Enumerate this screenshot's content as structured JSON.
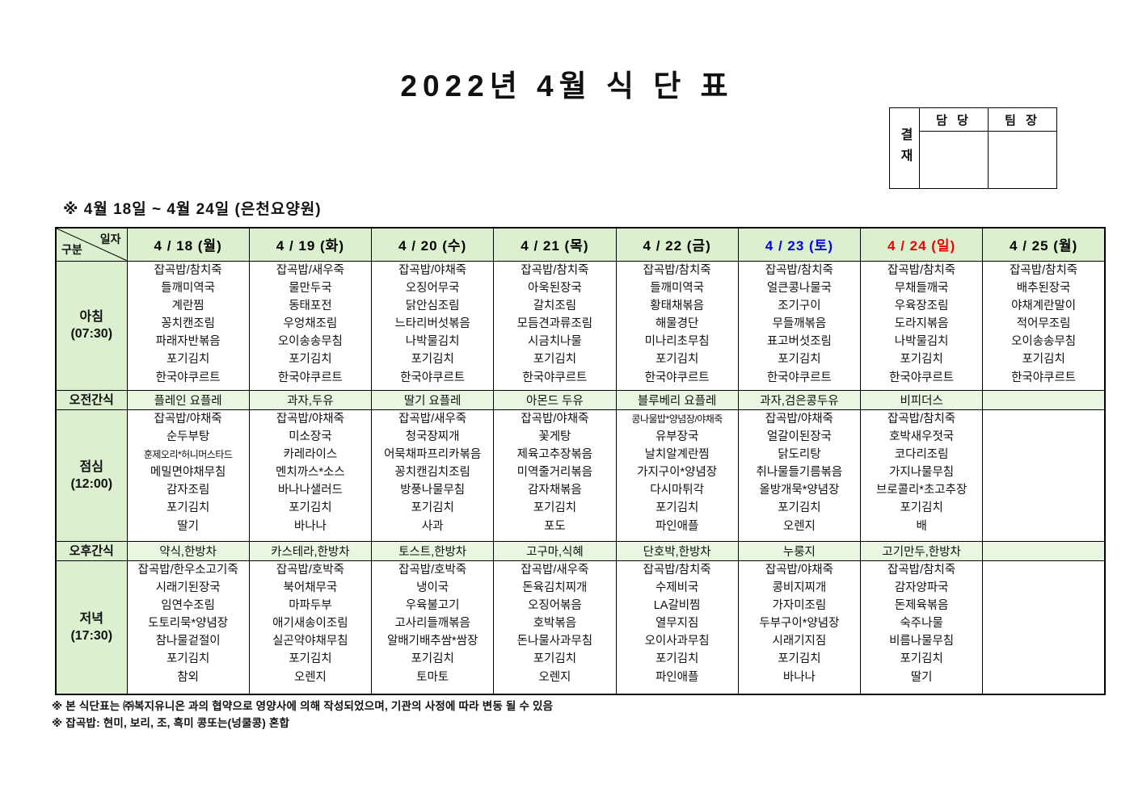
{
  "title": "2022년  4월  식 단 표",
  "approval": {
    "label": "결재",
    "cols": [
      "담 당",
      "팀 장"
    ]
  },
  "subtitle": "※  4월  18일  ~  4월  24일  (은천요양원)",
  "colors": {
    "header_green": "#dcf0d0",
    "snack_green": "#e9f6e1",
    "saturday_blue": "#0000e0",
    "sunday_red": "#ee0000",
    "weekday_black": "#000000"
  },
  "table": {
    "corner": {
      "top": "일자",
      "bottom": "구분"
    },
    "columns": [
      {
        "label": "4 / 18 (월)",
        "color": "#000000"
      },
      {
        "label": "4 / 19 (화)",
        "color": "#000000"
      },
      {
        "label": "4 / 20 (수)",
        "color": "#000000"
      },
      {
        "label": "4 / 21 (목)",
        "color": "#000000"
      },
      {
        "label": "4 / 22 (금)",
        "color": "#000000"
      },
      {
        "label": "4 / 23 (토)",
        "color": "#0000e0"
      },
      {
        "label": "4 / 24 (일)",
        "color": "#ee0000"
      },
      {
        "label": "4 / 25 (월)",
        "color": "#000000"
      }
    ],
    "rows": [
      {
        "type": "meal",
        "key": "breakfast",
        "label": "아침",
        "time": "(07:30)",
        "cells": [
          [
            "잡곡밥/참치죽",
            "들깨미역국",
            "계란찜",
            "꽁치캔조림",
            "파래자반볶음",
            "포기김치",
            "한국야쿠르트"
          ],
          [
            "잡곡밥/새우죽",
            "물만두국",
            "동태포전",
            "우엉채조림",
            "오이송송무침",
            "포기김치",
            "한국야쿠르트"
          ],
          [
            "잡곡밥/야채죽",
            "오징어무국",
            "닭안심조림",
            "느타리버섯볶음",
            "나박물김치",
            "포기김치",
            "한국야쿠르트"
          ],
          [
            "잡곡밥/참치죽",
            "아욱된장국",
            "갈치조림",
            "모듬견과류조림",
            "시금치나물",
            "포기김치",
            "한국야쿠르트"
          ],
          [
            "잡곡밥/참치죽",
            "들깨미역국",
            "황태채볶음",
            "해물경단",
            "미나리초무침",
            "포기김치",
            "한국야쿠르트"
          ],
          [
            "잡곡밥/참치죽",
            "얼큰콩나물국",
            "조기구이",
            "무들깨볶음",
            "표고버섯조림",
            "포기김치",
            "한국야쿠르트"
          ],
          [
            "잡곡밥/참치죽",
            "무채들깨국",
            "우육장조림",
            "도라지볶음",
            "나박물김치",
            "포기김치",
            "한국야쿠르트"
          ],
          [
            "잡곡밥/참치죽",
            "배추된장국",
            "야채계란말이",
            "적어무조림",
            "오이송송무침",
            "포기김치",
            "한국야쿠르트"
          ]
        ]
      },
      {
        "type": "snack",
        "key": "morning-snack",
        "label": "오전간식",
        "cells": [
          "플레인 요플레",
          "과자,두유",
          "딸기 요플레",
          "아몬드 두유",
          "블루베리 요플레",
          "과자,검은콩두유",
          "비피더스",
          ""
        ]
      },
      {
        "type": "meal",
        "key": "lunch",
        "label": "점심",
        "time": "(12:00)",
        "cells": [
          [
            "잡곡밥/야채죽",
            "순두부탕",
            "훈제오리*허니머스타드",
            "메밀면야채무침",
            "감자조림",
            "포기김치",
            "딸기"
          ],
          [
            "잡곡밥/야채죽",
            "미소장국",
            "카레라이스",
            "멘치까스*소스",
            "바나나샐러드",
            "포기김치",
            "바나나"
          ],
          [
            "잡곡밥/새우죽",
            "청국장찌개",
            "어묵채파프리카볶음",
            "꽁치캔김치조림",
            "방풍나물무침",
            "포기김치",
            "사과"
          ],
          [
            "잡곡밥/야채죽",
            "꽃게탕",
            "제육고추장볶음",
            "미역줄거리볶음",
            "감자채볶음",
            "포기김치",
            "포도"
          ],
          [
            "콩나물밥*양념장/야채죽",
            "유부장국",
            "날치알계란찜",
            "가지구이*양념장",
            "다시마튀각",
            "포기김치",
            "파인애플"
          ],
          [
            "잡곡밥/야채죽",
            "얼갈이된장국",
            "닭도리탕",
            "취나물들기름볶음",
            "올방개묵*양념장",
            "포기김치",
            "오렌지"
          ],
          [
            "잡곡밥/참치죽",
            "호박새우젓국",
            "코다리조림",
            "가지나물무침",
            "브로콜리*초고추장",
            "포기김치",
            "배"
          ],
          []
        ]
      },
      {
        "type": "snack",
        "key": "afternoon-snack",
        "label": "오후간식",
        "cells": [
          "약식,한방차",
          "카스테라,한방차",
          "토스트,한방차",
          "고구마,식혜",
          "단호박,한방차",
          "누룽지",
          "고기만두,한방차",
          ""
        ]
      },
      {
        "type": "meal",
        "key": "dinner",
        "label": "저녁",
        "time": "(17:30)",
        "cells": [
          [
            "잡곡밥/한우소고기죽",
            "시래기된장국",
            "임연수조림",
            "도토리묵*양념장",
            "참나물겉절이",
            "포기김치",
            "참외"
          ],
          [
            "잡곡밥/호박죽",
            "북어채무국",
            "마파두부",
            "애기새송이조림",
            "실곤약야채무침",
            "포기김치",
            "오렌지"
          ],
          [
            "잡곡밥/호박죽",
            "냉이국",
            "우육불고기",
            "고사리들깨볶음",
            "알배기배추쌈*쌈장",
            "포기김치",
            "토마토"
          ],
          [
            "잡곡밥/새우죽",
            "돈육김치찌개",
            "오징어볶음",
            "호박볶음",
            "돈나물사과무침",
            "포기김치",
            "오렌지"
          ],
          [
            "잡곡밥/참치죽",
            "수제비국",
            "LA갈비찜",
            "열무지짐",
            "오이사과무침",
            "포기김치",
            "파인애플"
          ],
          [
            "잡곡밥/야채죽",
            "콩비지찌개",
            "가자미조림",
            "두부구이*양념장",
            "시래기지짐",
            "포기김치",
            "바나나"
          ],
          [
            "잡곡밥/참치죽",
            "감자양파국",
            "돈제육볶음",
            "숙주나물",
            "비름나물무침",
            "포기김치",
            "딸기"
          ],
          []
        ]
      }
    ]
  },
  "footnotes": [
    "※ 본 식단표는 ㈜복지유니온 과의 협약으로 영양사에 의해 작성되었으며, 기관의 사정에 따라 변동 될 수 있음",
    "※ 잡곡밥: 현미, 보리, 조, 흑미 콩또는(넝쿨콩) 혼합"
  ]
}
